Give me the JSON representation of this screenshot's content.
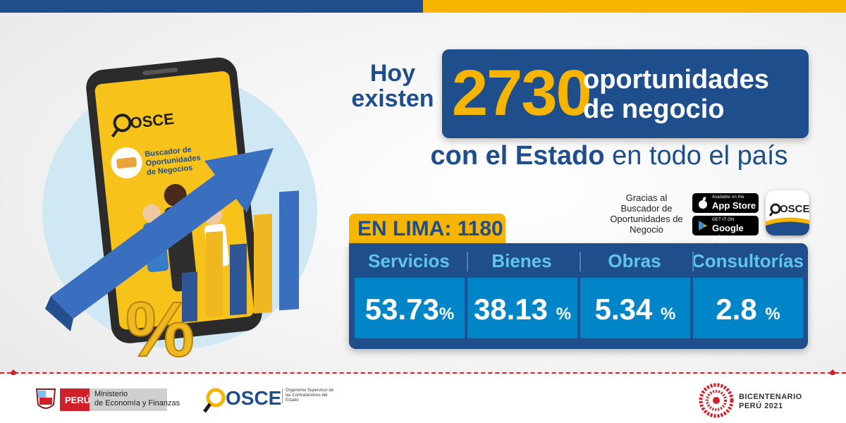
{
  "headline": {
    "hoy_line1": "Hoy",
    "hoy_line2": "existen",
    "count": "2730",
    "count_label_line1": "oportunidades",
    "count_label_line2": "de negocio",
    "sub_bold": "con el Estado",
    "sub_light": " en todo el país"
  },
  "illustration": {
    "phone_logo": "OSCE",
    "phone_title_line1": "Buscador de",
    "phone_title_line2": "Oportunidades",
    "phone_title_line3": "de Negocios",
    "percent_symbol": "%"
  },
  "app_info": {
    "thanks_text": "Gracias al Buscador de Oportunidades de Negocio",
    "app_store_small": "Available on the",
    "app_store_large": "App Store",
    "google_play_small": "GET IT ON",
    "google_play_large": "Google Play",
    "app_icon_label": "OSCE"
  },
  "lima": {
    "label": "EN LIMA: 1180"
  },
  "stats": {
    "percent_sign": "%",
    "categories": [
      {
        "name": "Servicios",
        "value": "53.73"
      },
      {
        "name": "Bienes",
        "value": "38.13"
      },
      {
        "name": "Obras",
        "value": "5.34"
      },
      {
        "name": "Consultorías",
        "value": "2.8"
      }
    ]
  },
  "footer": {
    "peru": "PERÚ",
    "ministerio_line1": "Ministerio",
    "ministerio_line2": "de Economía y Finanzas",
    "osce": "OSCE",
    "osce_org": "Organismo Supervisor de las Contrataciones del Estado",
    "bicentenario_line1": "BICENTENARIO",
    "bicentenario_line2": "PERÚ 2021"
  },
  "colors": {
    "navy": "#1f4e8c",
    "yellow": "#f7b500",
    "cyan": "#0086c8",
    "light_cyan": "#5fc4f0",
    "red": "#d0202b"
  }
}
